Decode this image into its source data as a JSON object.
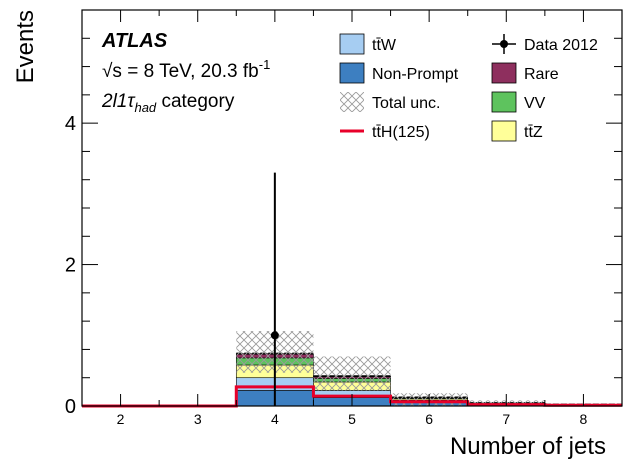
{
  "chart_data": {
    "type": "bar",
    "stacked": true,
    "xlabel": "Number of jets",
    "ylabel": "Events",
    "xlim": [
      1.5,
      8.5
    ],
    "ylim": [
      0,
      5.6
    ],
    "x_ticks": [
      2,
      3,
      4,
      5,
      6,
      7,
      8
    ],
    "y_ticks": [
      0,
      2,
      4
    ],
    "bin_edges": [
      1.5,
      2.5,
      3.5,
      4.5,
      5.5,
      6.5,
      7.5,
      8.5
    ],
    "bin_centers": [
      2,
      3,
      4,
      5,
      6,
      7,
      8
    ],
    "series": [
      {
        "name": "Non-Prompt",
        "color": "#3d7fc1",
        "values": [
          0,
          0,
          0.22,
          0.12,
          0.05,
          0.01,
          0.005
        ]
      },
      {
        "name": "tt̄W",
        "color": "#a6cdf2",
        "values": [
          0,
          0,
          0.18,
          0.1,
          0.03,
          0.01,
          0.005
        ]
      },
      {
        "name": "tt̄Z",
        "color": "#ffff99",
        "values": [
          0,
          0,
          0.18,
          0.12,
          0.02,
          0.01,
          0.005
        ]
      },
      {
        "name": "VV",
        "color": "#5ec35e",
        "values": [
          0,
          0,
          0.1,
          0.05,
          0.01,
          0.005,
          0.002
        ]
      },
      {
        "name": "Rare",
        "color": "#8e2f5e",
        "values": [
          0,
          0,
          0.06,
          0.03,
          0.01,
          0.005,
          0.003
        ]
      }
    ],
    "total_unc": [
      [
        0,
        0
      ],
      [
        0,
        0
      ],
      [
        0.47,
        1.06
      ],
      [
        0.22,
        0.7
      ],
      [
        0.0,
        0.18
      ],
      [
        0.0,
        0.08
      ],
      [
        0.0,
        0.03
      ]
    ],
    "signal": {
      "name": "tt̄H(125)",
      "color": "#e8002a",
      "values": [
        0,
        0,
        0.27,
        0.14,
        0.06,
        0.02,
        0.01
      ]
    },
    "data": {
      "name": "Data 2012",
      "points": [
        {
          "x": 4,
          "y": 1,
          "err_low": 1,
          "err_high": 2.3
        }
      ]
    },
    "annotations": {
      "experiment": "ATLAS",
      "energy": "√s = 8 TeV, 20.3 fb",
      "energy_sup": "-1",
      "category_main": "2l1τ",
      "category_sub": "had",
      "category_rest": " category"
    },
    "legend": {
      "placement": "top-right",
      "entries": [
        {
          "label": "tt̄W",
          "kind": "box",
          "color": "#a6cdf2"
        },
        {
          "label": "Data 2012",
          "kind": "data",
          "color": "#000000"
        },
        {
          "label": "Non-Prompt",
          "kind": "box",
          "color": "#3d7fc1"
        },
        {
          "label": "Rare",
          "kind": "box",
          "color": "#8e2f5e"
        },
        {
          "label": "Total unc.",
          "kind": "hatch",
          "color": "#999999"
        },
        {
          "label": "VV",
          "kind": "box",
          "color": "#5ec35e"
        },
        {
          "label": "tt̄H(125)",
          "kind": "line",
          "color": "#e8002a"
        },
        {
          "label": "tt̄Z",
          "kind": "box",
          "color": "#ffff99"
        }
      ]
    }
  }
}
